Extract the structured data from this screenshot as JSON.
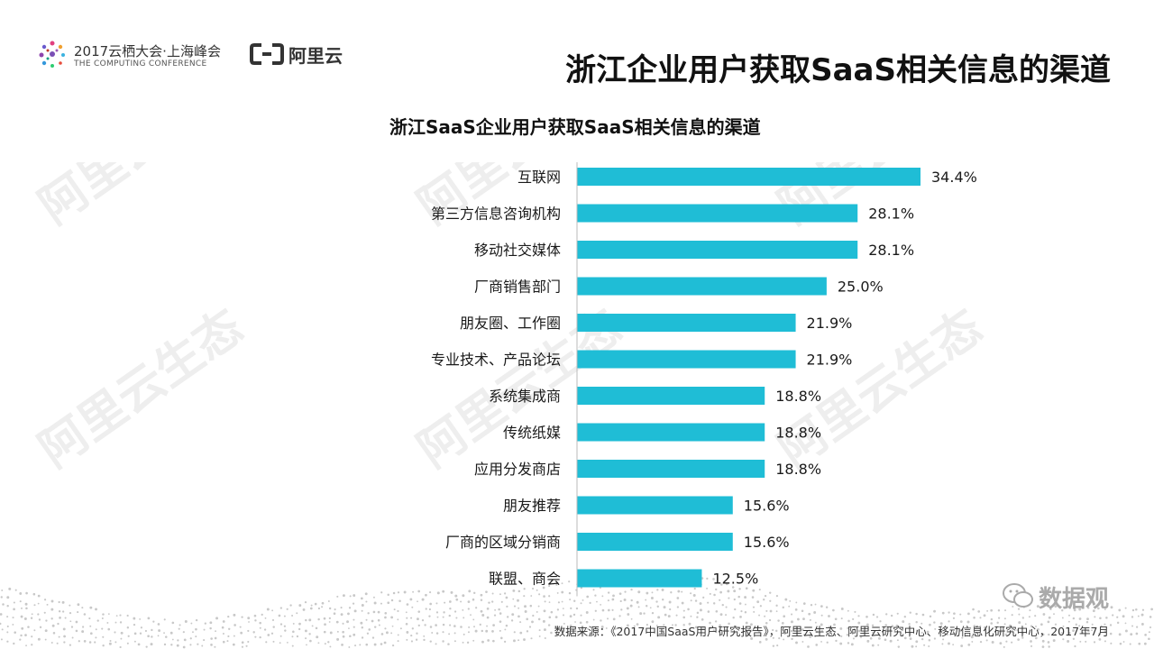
{
  "header": {
    "conference_line1": "2017云栖大会·上海峰会",
    "conference_line2": "THE COMPUTING CONFERENCE",
    "aliyun_logo_text": "阿里云",
    "page_title": "浙江企业用户获取SaaS相关信息的渠道"
  },
  "footer": {
    "source": "数据来源：《2017中国SaaS用户研究报告》，阿里云生态、阿里云研究中心、移动信息化研究中心，2017年7月",
    "watermark_badge": "数据观"
  },
  "watermark": {
    "text": "阿里云生态"
  },
  "colors": {
    "bar": "#1fbdd6",
    "text": "#1a1a1a",
    "watermark": "#eeeeee"
  },
  "chart_data": {
    "type": "bar",
    "orientation": "horizontal",
    "title": "浙江SaaS企业用户获取SaaS相关信息的渠道",
    "categories": [
      "互联网",
      "第三方信息咨询机构",
      "移动社交媒体",
      "厂商销售部门",
      "朋友圈、工作圈",
      "专业技术、产品论坛",
      "系统集成商",
      "传统纸媒",
      "应用分发商店",
      "朋友推荐",
      "厂商的区域分销商",
      "联盟、商会"
    ],
    "values": [
      34.4,
      28.1,
      28.1,
      25.0,
      21.9,
      21.9,
      18.8,
      18.8,
      18.8,
      15.6,
      15.6,
      12.5
    ],
    "value_labels": [
      "34.4%",
      "28.1%",
      "28.1%",
      "25.0%",
      "21.9%",
      "21.9%",
      "18.8%",
      "18.8%",
      "18.8%",
      "15.6%",
      "15.6%",
      "12.5%"
    ],
    "unit": "%",
    "xlim": [
      0,
      34.4
    ],
    "grid": false,
    "legend": "none"
  }
}
